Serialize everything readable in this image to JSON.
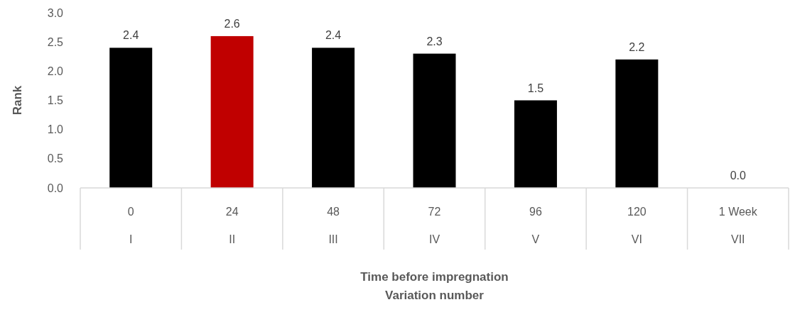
{
  "chart_data": {
    "type": "bar",
    "ylabel": "Rank",
    "xlabel": "Time before impregnation\nVariation number",
    "categories": [
      "0",
      "24",
      "48",
      "72",
      "96",
      "120",
      "1 Week"
    ],
    "values": [
      2.4,
      2.6,
      2.4,
      2.3,
      1.5,
      2.2,
      0.0
    ],
    "colors": [
      "#000000",
      "#c00000",
      "#000000",
      "#000000",
      "#000000",
      "#000000",
      "#000000"
    ],
    "value_labels": [
      "2.4",
      "2.6",
      "2.4",
      "2.3",
      "1.5",
      "2.2",
      "0.0"
    ],
    "ylim": [
      0,
      3
    ],
    "yticks": [
      {
        "value": 0,
        "label": "0.0"
      },
      {
        "value": 0.5,
        "label": "0.5"
      },
      {
        "value": 1,
        "label": "1.0"
      },
      {
        "value": 1.5,
        "label": "1.5"
      },
      {
        "value": 2,
        "label": "2.0"
      },
      {
        "value": 2.5,
        "label": "2.5"
      },
      {
        "value": 3,
        "label": "3.0"
      }
    ],
    "annotations": [
      "I",
      "II",
      "III",
      "IV",
      "V",
      "VI",
      "VII"
    ]
  }
}
